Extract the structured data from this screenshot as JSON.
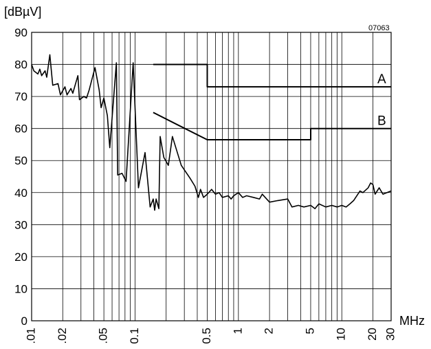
{
  "chart_data": {
    "type": "line",
    "title": "",
    "ylabel": "[dBµV]",
    "xlabel": "MHz",
    "figure_code": "07063",
    "xscale": "log",
    "xlim": [
      0.01,
      30
    ],
    "ylim": [
      0,
      90
    ],
    "grid": true,
    "x_tick_labels": [
      {
        "value": 0.01,
        "label": ".01"
      },
      {
        "value": 0.02,
        "label": ".02"
      },
      {
        "value": 0.05,
        "label": ".05"
      },
      {
        "value": 0.1,
        "label": "0.1"
      },
      {
        "value": 0.5,
        "label": "0.5"
      },
      {
        "value": 1,
        "label": "1"
      },
      {
        "value": 2,
        "label": "2"
      },
      {
        "value": 5,
        "label": "5"
      },
      {
        "value": 10,
        "label": "10"
      },
      {
        "value": 20,
        "label": "20"
      },
      {
        "value": 30,
        "label": "30"
      }
    ],
    "y_ticks": [
      0,
      10,
      20,
      30,
      40,
      50,
      60,
      70,
      80,
      90
    ],
    "series": [
      {
        "name": "A",
        "points": [
          [
            0.15,
            80
          ],
          [
            0.5,
            80
          ],
          [
            0.5,
            73
          ],
          [
            30,
            73
          ]
        ]
      },
      {
        "name": "B",
        "points": [
          [
            0.15,
            65
          ],
          [
            0.5,
            56.5
          ],
          [
            5,
            56.5
          ],
          [
            5,
            60
          ],
          [
            30,
            60
          ]
        ]
      },
      {
        "points": [
          [
            0.01,
            80
          ],
          [
            0.0105,
            78
          ],
          [
            0.0115,
            77
          ],
          [
            0.012,
            78.5
          ],
          [
            0.0125,
            76.5
          ],
          [
            0.0135,
            78
          ],
          [
            0.014,
            76
          ],
          [
            0.015,
            83
          ],
          [
            0.016,
            73.5
          ],
          [
            0.018,
            74
          ],
          [
            0.019,
            70.5
          ],
          [
            0.021,
            73
          ],
          [
            0.022,
            70.5
          ],
          [
            0.024,
            72.5
          ],
          [
            0.025,
            71
          ],
          [
            0.028,
            76.5
          ],
          [
            0.029,
            69
          ],
          [
            0.032,
            70
          ],
          [
            0.034,
            69.5
          ],
          [
            0.036,
            72
          ],
          [
            0.041,
            79
          ],
          [
            0.045,
            72
          ],
          [
            0.047,
            66.5
          ],
          [
            0.05,
            69.5
          ],
          [
            0.054,
            64
          ],
          [
            0.057,
            54
          ],
          [
            0.066,
            80.5
          ],
          [
            0.068,
            45.5
          ],
          [
            0.075,
            46
          ],
          [
            0.082,
            43.5
          ],
          [
            0.096,
            80.5
          ],
          [
            0.108,
            41.5
          ],
          [
            0.125,
            52.5
          ],
          [
            0.14,
            35.5
          ],
          [
            0.15,
            38
          ],
          [
            0.155,
            34.5
          ],
          [
            0.16,
            38
          ],
          [
            0.17,
            35
          ],
          [
            0.175,
            57.5
          ],
          [
            0.19,
            51
          ],
          [
            0.21,
            48.5
          ],
          [
            0.23,
            57.5
          ],
          [
            0.28,
            48.5
          ],
          [
            0.34,
            44.5
          ],
          [
            0.38,
            42
          ],
          [
            0.41,
            38.5
          ],
          [
            0.43,
            41
          ],
          [
            0.46,
            38.5
          ],
          [
            0.5,
            39.5
          ],
          [
            0.55,
            41
          ],
          [
            0.6,
            39.5
          ],
          [
            0.65,
            40
          ],
          [
            0.7,
            38.5
          ],
          [
            0.8,
            39
          ],
          [
            0.85,
            38
          ],
          [
            0.9,
            39
          ],
          [
            1,
            40
          ],
          [
            1.1,
            38.5
          ],
          [
            1.2,
            39
          ],
          [
            1.4,
            38.5
          ],
          [
            1.6,
            38
          ],
          [
            1.7,
            39.5
          ],
          [
            2,
            37
          ],
          [
            2.4,
            37.5
          ],
          [
            3,
            38
          ],
          [
            3.3,
            35.5
          ],
          [
            3.8,
            36
          ],
          [
            4.3,
            35.5
          ],
          [
            5,
            36
          ],
          [
            5.5,
            35
          ],
          [
            6,
            36.5
          ],
          [
            7,
            35.5
          ],
          [
            8,
            36
          ],
          [
            9,
            35.5
          ],
          [
            10,
            36
          ],
          [
            11,
            35.5
          ],
          [
            12,
            36.5
          ],
          [
            13,
            37.5
          ],
          [
            15,
            40.5
          ],
          [
            16,
            40
          ],
          [
            18,
            41.5
          ],
          [
            19,
            43
          ],
          [
            20,
            42.5
          ],
          [
            21,
            39.5
          ],
          [
            23,
            41.5
          ],
          [
            25,
            39.5
          ],
          [
            30,
            40.5
          ]
        ]
      }
    ]
  }
}
